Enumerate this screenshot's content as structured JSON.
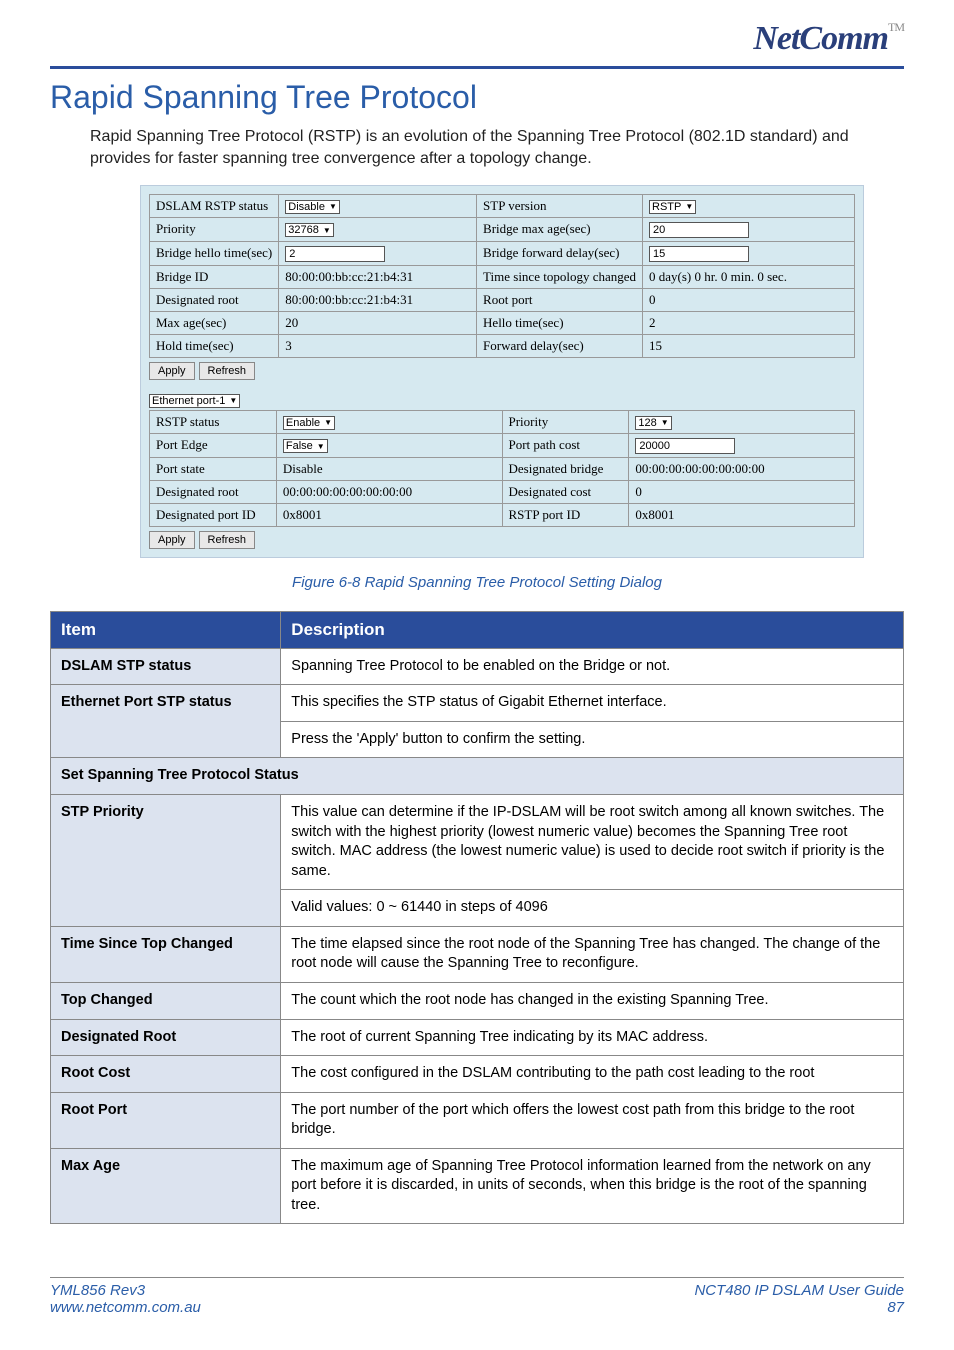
{
  "logo": {
    "text": "NetComm",
    "tm": "TM"
  },
  "title": "Rapid Spanning Tree Protocol",
  "intro": "Rapid Spanning Tree Protocol (RSTP) is an evolution of the Spanning Tree Protocol (802.1D standard) and provides for faster spanning tree convergence after a topology change.",
  "dialog": {
    "top": {
      "rows": [
        {
          "l1": "DSLAM RSTP status",
          "v1_type": "select",
          "v1": "Disable",
          "l2": "STP version",
          "v2_type": "select",
          "v2": "RSTP"
        },
        {
          "l1": "Priority",
          "v1_type": "select",
          "v1": "32768",
          "l2": "Bridge max age(sec)",
          "v2_type": "input",
          "v2": "20"
        },
        {
          "l1": "Bridge hello time(sec)",
          "v1_type": "input",
          "v1": "2",
          "l2": "Bridge forward delay(sec)",
          "v2_type": "input",
          "v2": "15"
        },
        {
          "l1": "Bridge ID",
          "v1_type": "text",
          "v1": "80:00:00:bb:cc:21:b4:31",
          "l2": "Time since topology changed",
          "v2_type": "text",
          "v2": "0 day(s) 0 hr. 0 min. 0 sec."
        },
        {
          "l1": "Designated root",
          "v1_type": "text",
          "v1": "80:00:00:bb:cc:21:b4:31",
          "l2": "Root port",
          "v2_type": "text",
          "v2": "0"
        },
        {
          "l1": "Max age(sec)",
          "v1_type": "text",
          "v1": "20",
          "l2": "Hello time(sec)",
          "v2_type": "text",
          "v2": "2"
        },
        {
          "l1": "Hold time(sec)",
          "v1_type": "text",
          "v1": "3",
          "l2": "Forward delay(sec)",
          "v2_type": "text",
          "v2": "15"
        }
      ],
      "apply": "Apply",
      "refresh": "Refresh"
    },
    "portSelect": "Ethernet port-1",
    "bottom": {
      "rows": [
        {
          "l1": "RSTP status",
          "v1_type": "select",
          "v1": "Enable",
          "l2": "Priority",
          "v2_type": "select",
          "v2": "128"
        },
        {
          "l1": "Port Edge",
          "v1_type": "select",
          "v1": "False",
          "l2": "Port path cost",
          "v2_type": "input",
          "v2": "20000"
        },
        {
          "l1": "Port state",
          "v1_type": "text",
          "v1": "Disable",
          "l2": "Designated bridge",
          "v2_type": "text",
          "v2": "00:00:00:00:00:00:00:00"
        },
        {
          "l1": "Designated root",
          "v1_type": "text",
          "v1": "00:00:00:00:00:00:00:00",
          "l2": "Designated cost",
          "v2_type": "text",
          "v2": "0"
        },
        {
          "l1": "Designated port ID",
          "v1_type": "text",
          "v1": "0x8001",
          "l2": "RSTP port ID",
          "v2_type": "text",
          "v2": "0x8001"
        }
      ],
      "apply": "Apply",
      "refresh": "Refresh"
    }
  },
  "figcap": "Figure 6-8 Rapid Spanning Tree Protocol Setting Dialog",
  "descHeaders": {
    "item": "Item",
    "desc": "Description"
  },
  "descRows": [
    {
      "type": "row",
      "item": "DSLAM STP status",
      "desc": "Spanning Tree Protocol to be enabled on the Bridge or not."
    },
    {
      "type": "row2",
      "item": "Ethernet Port STP status",
      "desc": "This specifies the STP status of Gigabit Ethernet interface.",
      "desc2": "Press the 'Apply' button to confirm the setting."
    },
    {
      "type": "section",
      "item": "Set Spanning Tree Protocol Status"
    },
    {
      "type": "row2",
      "item": "STP Priority",
      "desc": "This value can determine if the IP-DSLAM will be root switch among all known switches. The switch with the highest priority (lowest numeric value) becomes the Spanning Tree root switch. MAC address (the lowest numeric value) is used to decide root switch if priority is the same.",
      "desc2": "Valid values: 0 ~ 61440 in steps of 4096"
    },
    {
      "type": "row",
      "item": "Time Since Top Changed",
      "desc": "The time elapsed since the root node of the Spanning Tree has changed. The change of the root node will cause the Spanning Tree to reconfigure."
    },
    {
      "type": "row",
      "item": "Top Changed",
      "desc": "The count which the root node has changed in the existing Spanning Tree."
    },
    {
      "type": "row",
      "item": "Designated Root",
      "desc": "The root of current Spanning Tree indicating by its MAC address."
    },
    {
      "type": "row",
      "item": "Root Cost",
      "desc": "The cost configured in the DSLAM contributing to the path cost leading to the root"
    },
    {
      "type": "row",
      "item": "Root Port",
      "desc": "The port number of the port which offers the lowest cost path from this bridge to the root bridge."
    },
    {
      "type": "row",
      "item": "Max Age",
      "desc": "The maximum age of Spanning Tree Protocol information learned from the network on any port before it is discarded, in units of seconds, when this bridge is the root of the spanning tree."
    }
  ],
  "footer": {
    "leftTop": "YML856 Rev3",
    "leftBottom": "www.netcomm.com.au",
    "rightTop": "NCT480 IP DSLAM User Guide",
    "rightBottom": "87"
  }
}
